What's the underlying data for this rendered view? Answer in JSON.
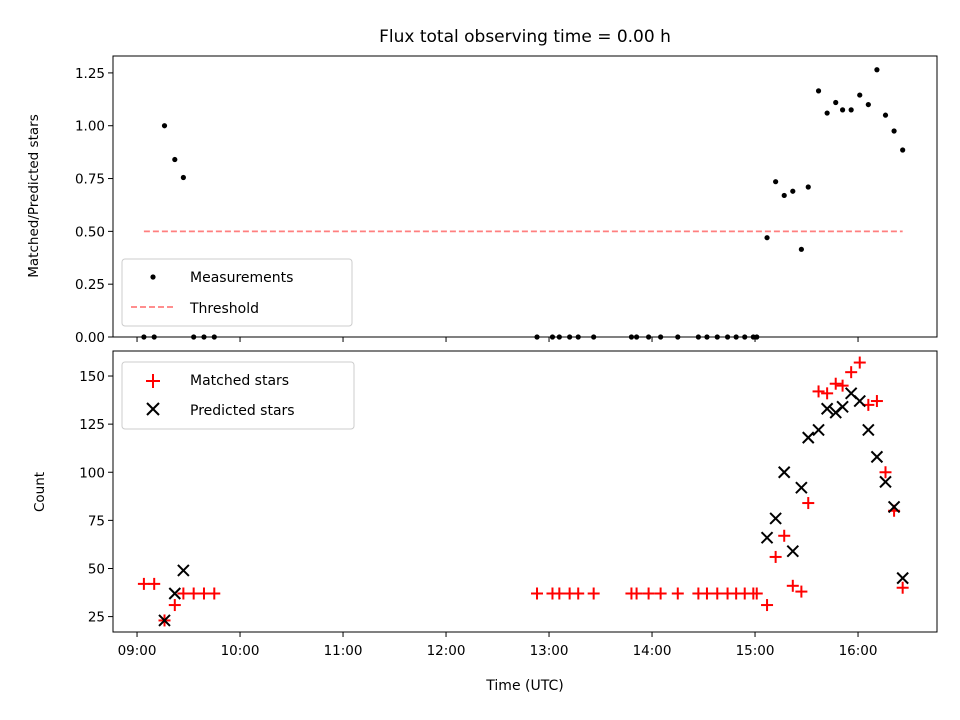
{
  "chart_data": [
    {
      "type": "scatter",
      "title": "Flux total observing time = 0.00 h",
      "xlabel": "",
      "ylabel": "Matched/Predicted stars",
      "xlim": [
        "08:46",
        "16:46"
      ],
      "ylim": [
        0,
        1.33
      ],
      "ytick_labels": [
        "0.00",
        "0.25",
        "0.50",
        "0.75",
        "1.00",
        "1.25"
      ],
      "yticks": [
        0,
        0.25,
        0.5,
        0.75,
        1.0,
        1.25
      ],
      "legend_location": "lower-left",
      "grid": false,
      "series": [
        {
          "name": "Measurements",
          "marker": "dot",
          "color": "#000000",
          "points": [
            [
              "09:04",
              0
            ],
            [
              "09:10",
              0
            ],
            [
              "09:16",
              1.0
            ],
            [
              "09:22",
              0.84
            ],
            [
              "09:27",
              0.755
            ],
            [
              "09:33",
              0
            ],
            [
              "09:39",
              0
            ],
            [
              "09:45",
              0
            ],
            [
              "12:53",
              0
            ],
            [
              "13:02",
              0
            ],
            [
              "13:06",
              0
            ],
            [
              "13:12",
              0
            ],
            [
              "13:17",
              0
            ],
            [
              "13:26",
              0
            ],
            [
              "13:48",
              0
            ],
            [
              "13:51",
              0
            ],
            [
              "13:58",
              0
            ],
            [
              "14:05",
              0
            ],
            [
              "14:15",
              0
            ],
            [
              "14:27",
              0
            ],
            [
              "14:32",
              0
            ],
            [
              "14:38",
              0
            ],
            [
              "14:44",
              0
            ],
            [
              "14:49",
              0
            ],
            [
              "14:54",
              0
            ],
            [
              "14:59",
              0
            ],
            [
              "15:01",
              0
            ],
            [
              "15:07",
              0.47
            ],
            [
              "15:12",
              0.735
            ],
            [
              "15:17",
              0.67
            ],
            [
              "15:22",
              0.69
            ],
            [
              "15:27",
              0.415
            ],
            [
              "15:31",
              0.71
            ],
            [
              "15:37",
              1.165
            ],
            [
              "15:42",
              1.06
            ],
            [
              "15:47",
              1.11
            ],
            [
              "15:51",
              1.075
            ],
            [
              "15:56",
              1.075
            ],
            [
              "16:01",
              1.145
            ],
            [
              "16:06",
              1.1
            ],
            [
              "16:11",
              1.265
            ],
            [
              "16:16",
              1.05
            ],
            [
              "16:21",
              0.975
            ],
            [
              "16:26",
              0.885
            ]
          ]
        },
        {
          "name": "Threshold",
          "marker": "dashed-line",
          "color": "#ff7f7f",
          "points": [
            [
              "09:04",
              0.5
            ],
            [
              "16:26",
              0.5
            ]
          ]
        }
      ]
    },
    {
      "type": "scatter",
      "title": "",
      "xlabel": "Time (UTC)",
      "ylabel": "Count",
      "xlim": [
        "08:46",
        "16:46"
      ],
      "ylim": [
        17,
        163
      ],
      "ytick_labels": [
        "25",
        "50",
        "75",
        "100",
        "125",
        "150"
      ],
      "yticks": [
        25,
        50,
        75,
        100,
        125,
        150
      ],
      "xtick_labels": [
        "09:00",
        "10:00",
        "11:00",
        "12:00",
        "13:00",
        "14:00",
        "15:00",
        "16:00"
      ],
      "xticks": [
        "09:00",
        "10:00",
        "11:00",
        "12:00",
        "13:00",
        "14:00",
        "15:00",
        "16:00"
      ],
      "legend_location": "upper-left",
      "grid": false,
      "series": [
        {
          "name": "Matched stars",
          "marker": "plus",
          "color": "#ff0000",
          "points": [
            [
              "09:04",
              42
            ],
            [
              "09:10",
              42
            ],
            [
              "09:16",
              23
            ],
            [
              "09:22",
              31
            ],
            [
              "09:27",
              37
            ],
            [
              "09:33",
              37
            ],
            [
              "09:39",
              37
            ],
            [
              "09:45",
              37
            ],
            [
              "12:53",
              37
            ],
            [
              "13:02",
              37
            ],
            [
              "13:06",
              37
            ],
            [
              "13:12",
              37
            ],
            [
              "13:17",
              37
            ],
            [
              "13:26",
              37
            ],
            [
              "13:48",
              37
            ],
            [
              "13:51",
              37
            ],
            [
              "13:58",
              37
            ],
            [
              "14:05",
              37
            ],
            [
              "14:15",
              37
            ],
            [
              "14:27",
              37
            ],
            [
              "14:32",
              37
            ],
            [
              "14:38",
              37
            ],
            [
              "14:44",
              37
            ],
            [
              "14:49",
              37
            ],
            [
              "14:54",
              37
            ],
            [
              "14:59",
              37
            ],
            [
              "15:01",
              37
            ],
            [
              "15:07",
              31
            ],
            [
              "15:12",
              56
            ],
            [
              "15:17",
              67
            ],
            [
              "15:22",
              41
            ],
            [
              "15:27",
              38
            ],
            [
              "15:31",
              84
            ],
            [
              "15:37",
              142
            ],
            [
              "15:42",
              141
            ],
            [
              "15:47",
              146
            ],
            [
              "15:51",
              145
            ],
            [
              "15:56",
              152
            ],
            [
              "16:01",
              157
            ],
            [
              "16:06",
              135
            ],
            [
              "16:11",
              137
            ],
            [
              "16:16",
              100
            ],
            [
              "16:21",
              80
            ],
            [
              "16:26",
              40
            ]
          ]
        },
        {
          "name": "Predicted stars",
          "marker": "x",
          "color": "#000000",
          "points": [
            [
              "09:16",
              23
            ],
            [
              "09:22",
              37
            ],
            [
              "09:27",
              49
            ],
            [
              "15:07",
              66
            ],
            [
              "15:12",
              76
            ],
            [
              "15:17",
              100
            ],
            [
              "15:22",
              59
            ],
            [
              "15:27",
              92
            ],
            [
              "15:31",
              118
            ],
            [
              "15:37",
              122
            ],
            [
              "15:42",
              133
            ],
            [
              "15:47",
              131
            ],
            [
              "15:51",
              134
            ],
            [
              "15:56",
              141
            ],
            [
              "16:01",
              137
            ],
            [
              "16:06",
              122
            ],
            [
              "16:11",
              108
            ],
            [
              "16:16",
              95
            ],
            [
              "16:21",
              82
            ],
            [
              "16:26",
              45
            ]
          ]
        }
      ]
    }
  ]
}
